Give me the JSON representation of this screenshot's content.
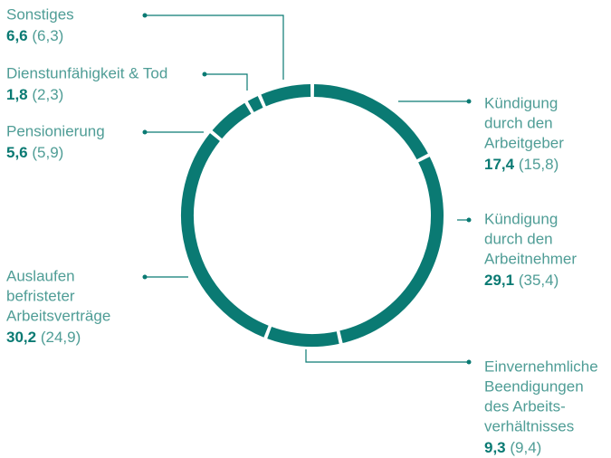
{
  "chart_data": {
    "type": "donut",
    "categories": [
      [
        "Kündigung",
        "durch den",
        "Arbeitgeber"
      ],
      [
        "Kündigung",
        "durch den",
        "Arbeitnehmer"
      ],
      [
        "Einvernehmliche",
        "Beendigungen",
        "des Arbeits-",
        "verhältnisses"
      ],
      [
        "Auslaufen",
        "befristeter",
        "Arbeitsverträge"
      ],
      [
        "Pensionierung"
      ],
      [
        "Dienstunfähigkeit & Tod"
      ],
      [
        "Sonstiges"
      ]
    ],
    "values": [
      17.4,
      29.1,
      9.3,
      30.2,
      5.6,
      1.8,
      6.6
    ],
    "value_labels": [
      "17,4",
      "29,1",
      "9,3",
      "30,2",
      "5,6",
      "1,8",
      "6,6"
    ],
    "previous_value_labels": [
      "(15,8)",
      "(35,4)",
      "(9,4)",
      "(24,9)",
      "(5,9)",
      "(2,3)",
      "(6,3)"
    ],
    "color": "#0a7a73"
  }
}
